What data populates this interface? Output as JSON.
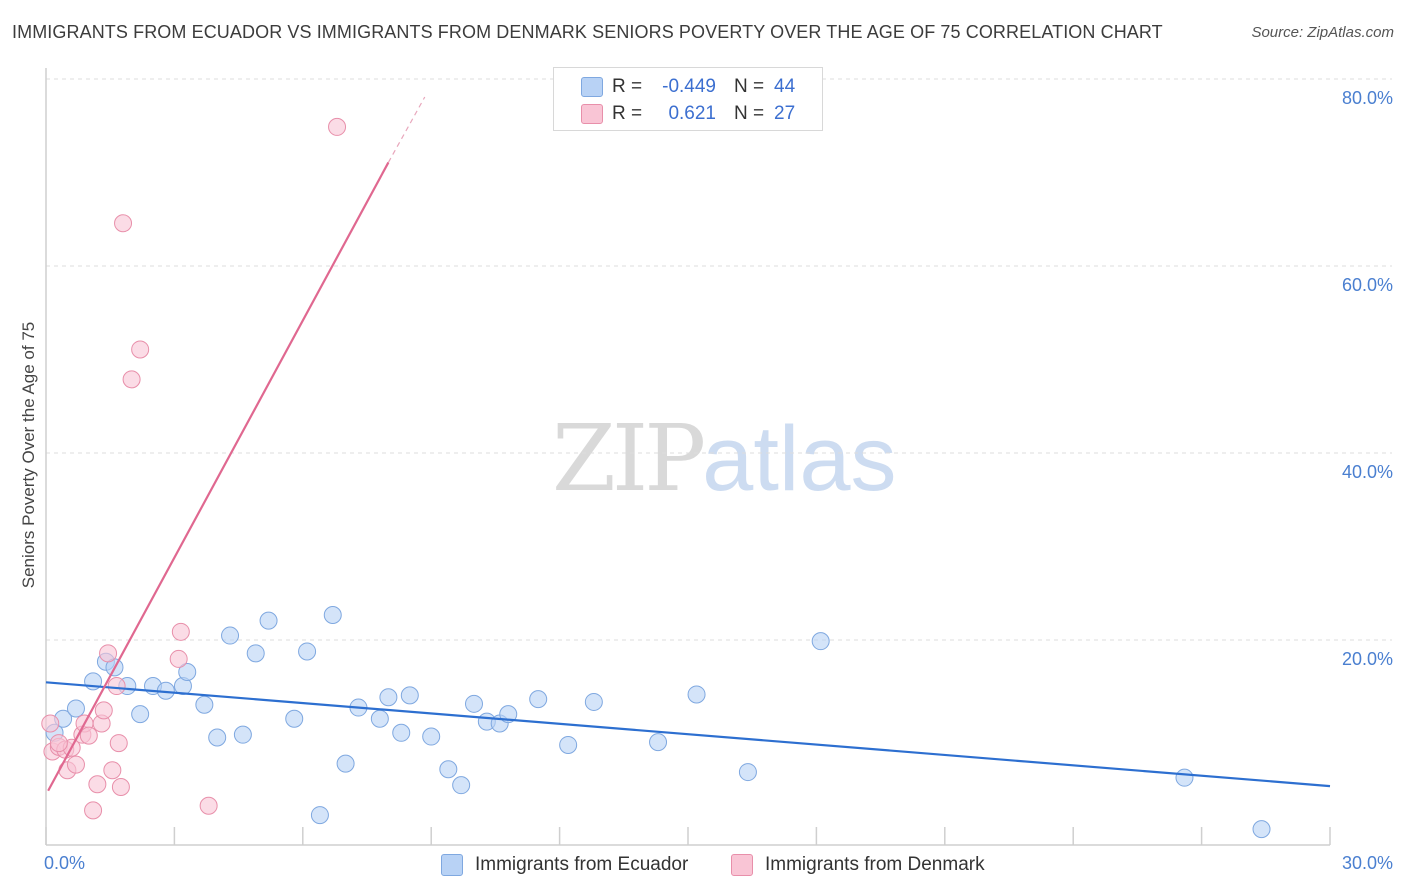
{
  "title": "IMMIGRANTS FROM ECUADOR VS IMMIGRANTS FROM DENMARK SENIORS POVERTY OVER THE AGE OF 75 CORRELATION CHART",
  "source": "Source: ZipAtlas.com",
  "watermark": {
    "zip": "ZIP",
    "atlas": "atlas"
  },
  "legend_top": {
    "rows": [
      {
        "r_label": "R =",
        "r_value": "-0.449",
        "n_label": "N =",
        "n_value": "44"
      },
      {
        "r_label": "R =",
        "r_value": "0.621",
        "n_label": "N =",
        "n_value": "27"
      }
    ]
  },
  "legend_bottom": [
    {
      "label": "Immigrants from Ecuador"
    },
    {
      "label": "Immigrants from Denmark"
    }
  ],
  "colors": {
    "ecuador_fill": "#b8d2f5",
    "ecuador_stroke": "#7fa8e0",
    "ecuador_line": "#2d6fd0",
    "denmark_fill": "#f9c5d5",
    "denmark_stroke": "#e88faa",
    "denmark_line": "#e06890",
    "grid": "#dddddd",
    "tick_text": "#4a7fd0"
  },
  "chart_data": {
    "type": "scatter",
    "title": "IMMIGRANTS FROM ECUADOR VS IMMIGRANTS FROM DENMARK SENIORS POVERTY OVER THE AGE OF 75 CORRELATION CHART",
    "xlabel": "",
    "ylabel": "Seniors Poverty Over the Age of 75",
    "xlim": [
      0,
      30
    ],
    "ylim": [
      0,
      80
    ],
    "x_tick_labels": [
      "0.0%",
      "30.0%"
    ],
    "y_ticks": [
      20,
      40,
      60,
      80
    ],
    "y_tick_labels": [
      "20.0%",
      "40.0%",
      "60.0%",
      "80.0%"
    ],
    "grid": true,
    "legend": "bottom",
    "series": [
      {
        "name": "Immigrants from Ecuador",
        "r": -0.449,
        "n": 44,
        "trend": {
          "x": [
            0,
            30
          ],
          "y": [
            17.4,
            6.3
          ]
        },
        "points": [
          [
            0.2,
            12.0
          ],
          [
            0.4,
            13.5
          ],
          [
            0.7,
            14.6
          ],
          [
            1.1,
            17.5
          ],
          [
            1.4,
            19.6
          ],
          [
            1.6,
            19.0
          ],
          [
            1.9,
            17.0
          ],
          [
            2.2,
            14.0
          ],
          [
            2.5,
            17.0
          ],
          [
            2.8,
            16.5
          ],
          [
            3.2,
            17.0
          ],
          [
            3.3,
            18.5
          ],
          [
            3.7,
            15.0
          ],
          [
            4.0,
            11.5
          ],
          [
            4.3,
            22.4
          ],
          [
            4.6,
            11.8
          ],
          [
            4.9,
            20.5
          ],
          [
            5.2,
            24.0
          ],
          [
            5.8,
            13.5
          ],
          [
            6.1,
            20.7
          ],
          [
            6.4,
            3.2
          ],
          [
            6.7,
            24.6
          ],
          [
            7.0,
            8.7
          ],
          [
            7.3,
            14.7
          ],
          [
            7.8,
            13.5
          ],
          [
            8.0,
            15.8
          ],
          [
            8.3,
            12.0
          ],
          [
            8.5,
            16.0
          ],
          [
            9.0,
            11.6
          ],
          [
            9.4,
            8.1
          ],
          [
            9.7,
            6.4
          ],
          [
            10.0,
            15.1
          ],
          [
            10.3,
            13.2
          ],
          [
            10.6,
            13.0
          ],
          [
            10.8,
            14.0
          ],
          [
            11.5,
            15.6
          ],
          [
            12.2,
            10.7
          ],
          [
            12.8,
            15.3
          ],
          [
            14.3,
            11.0
          ],
          [
            15.2,
            16.1
          ],
          [
            16.4,
            7.8
          ],
          [
            18.1,
            21.8
          ],
          [
            26.6,
            7.2
          ],
          [
            28.4,
            1.7
          ]
        ]
      },
      {
        "name": "Immigrants from Denmark",
        "r": 0.621,
        "n": 27,
        "trend": {
          "x": [
            0.05,
            8.0
          ],
          "y": [
            5.8,
            73.0
          ]
        },
        "trend_dashed": {
          "x": [
            8.0,
            8.85
          ],
          "y": [
            73.0,
            80.0
          ]
        },
        "points": [
          [
            0.1,
            13.0
          ],
          [
            0.15,
            10.0
          ],
          [
            0.3,
            10.5
          ],
          [
            0.45,
            10.2
          ],
          [
            0.5,
            8.0
          ],
          [
            0.6,
            10.4
          ],
          [
            0.7,
            8.6
          ],
          [
            0.85,
            11.8
          ],
          [
            0.9,
            13.0
          ],
          [
            1.0,
            11.7
          ],
          [
            1.1,
            3.7
          ],
          [
            1.2,
            6.5
          ],
          [
            1.3,
            13.0
          ],
          [
            1.35,
            14.4
          ],
          [
            1.45,
            20.5
          ],
          [
            1.55,
            8.0
          ],
          [
            1.65,
            17.0
          ],
          [
            1.7,
            10.9
          ],
          [
            1.75,
            6.2
          ],
          [
            1.8,
            66.5
          ],
          [
            2.0,
            49.8
          ],
          [
            2.2,
            53.0
          ],
          [
            3.1,
            19.9
          ],
          [
            3.15,
            22.8
          ],
          [
            3.8,
            4.2
          ],
          [
            6.8,
            76.8
          ],
          [
            0.3,
            10.9
          ]
        ]
      }
    ]
  }
}
